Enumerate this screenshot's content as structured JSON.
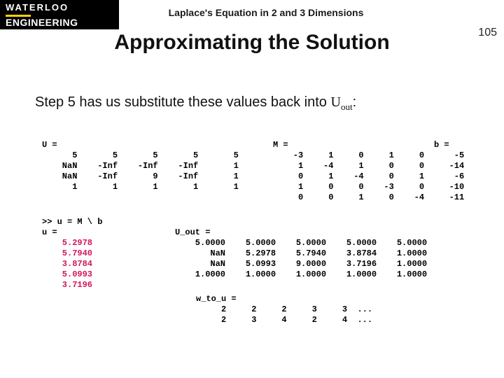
{
  "logo": {
    "line1": "WATERLOO",
    "line2": "ENGINEERING"
  },
  "topic": "Laplace's Equation in 2 and 3 Dimensions",
  "page_number": "105",
  "title": "Approximating the Solution",
  "step_text_prefix": "Step 5 has us substitute these values back into ",
  "step_U": "U",
  "step_sub": "out",
  "step_colon": ":",
  "blocks": {
    "U": {
      "header": "U =",
      "rows": [
        "      5       5       5       5       5",
        "    NaN    -Inf    -Inf    -Inf       1",
        "    NaN    -Inf       9    -Inf       1",
        "      1       1       1       1       1"
      ]
    },
    "M": {
      "header": "M =",
      "rows": [
        "    -3     1     0     1     0",
        "     1    -4     1     0     0",
        "     0     1    -4     0     1",
        "     1     0     0    -3     0",
        "     0     0     1     0    -4"
      ]
    },
    "b": {
      "header": "b =",
      "rows": [
        "    -5",
        "   -14",
        "    -6",
        "   -10",
        "   -11"
      ]
    },
    "solve": {
      "cmd": ">> u = M \\ b",
      "label": "u =",
      "vals": [
        "    5.2978",
        "    5.7940",
        "    3.8784",
        "    5.0993",
        "    3.7196"
      ]
    },
    "Uout": {
      "header": "U_out =",
      "rows": [
        "    5.0000    5.0000    5.0000    5.0000    5.0000",
        "       NaN    5.2978    5.7940    3.8784    1.0000",
        "       NaN    5.0993    9.0000    3.7196    1.0000",
        "    1.0000    1.0000    1.0000    1.0000    1.0000"
      ]
    },
    "wtou": {
      "header": "w_to_u =",
      "rows": [
        "     2     2     2     3     3  ...",
        "     2     3     4     2     4  ..."
      ]
    }
  },
  "colors": {
    "highlight": "#d4145a",
    "logo_bg": "#000000",
    "logo_accent": "#ffd200"
  },
  "fonts": {
    "body": "Arial",
    "code": "Courier New",
    "math": "Times New Roman",
    "title_size_pt": 30,
    "step_size_pt": 20,
    "code_size_pt": 12
  }
}
